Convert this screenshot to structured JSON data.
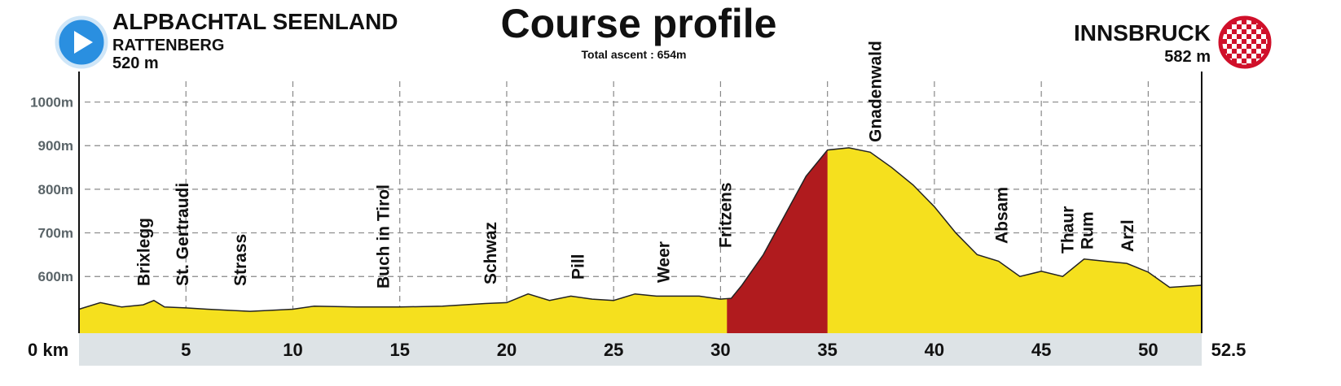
{
  "chart_data": {
    "type": "area",
    "title": "Course profile",
    "subtitle": "Total ascent : 654m",
    "start": {
      "region": "ALPBACHTAL SEENLAND",
      "town": "RATTENBERG",
      "altitude": "520 m"
    },
    "finish": {
      "town": "INNSBRUCK",
      "altitude": "582 m"
    },
    "x": [
      0,
      1,
      2,
      3,
      3.5,
      4,
      5,
      6,
      8,
      10,
      11,
      13,
      15,
      17,
      19,
      20,
      21,
      22,
      23,
      24,
      25,
      26,
      27,
      28,
      29,
      30,
      30.5,
      31,
      32,
      33,
      34,
      35,
      36,
      37,
      38,
      39,
      40,
      41,
      42,
      43,
      44,
      45,
      46,
      47,
      48,
      49,
      50,
      51,
      52.5
    ],
    "series": [
      {
        "color": "#f5e01e",
        "values": [
          525,
          540,
          530,
          535,
          545,
          530,
          528,
          525,
          520,
          525,
          532,
          530,
          530,
          532,
          538,
          540,
          560,
          545,
          555,
          548,
          545,
          560,
          555,
          555,
          555,
          548,
          550,
          580,
          650,
          740,
          830,
          890,
          895,
          885,
          850,
          810,
          760,
          700,
          650,
          635,
          600,
          612,
          600,
          640,
          635,
          630,
          610,
          575,
          580
        ]
      }
    ],
    "highlight": {
      "xrange": [
        30.3,
        35
      ],
      "color": "#b01b1e"
    },
    "places": [
      {
        "name": "Brixlegg",
        "km": 3
      },
      {
        "name": "St. Gertraudi",
        "km": 4.8
      },
      {
        "name": "Strass",
        "km": 7.5
      },
      {
        "name": "Buch in Tirol",
        "km": 14.2
      },
      {
        "name": "Schwaz",
        "km": 19.2
      },
      {
        "name": "Pill",
        "km": 23.3
      },
      {
        "name": "Weer",
        "km": 27.3
      },
      {
        "name": "Fritzens",
        "km": 30.2
      },
      {
        "name": "Gnadenwald",
        "km": 37.2
      },
      {
        "name": "Absam",
        "km": 43.1
      },
      {
        "name": "Thaur",
        "km": 46.2
      },
      {
        "name": "Rum",
        "km": 47.1
      },
      {
        "name": "Arzl",
        "km": 49
      }
    ],
    "xlim": [
      0,
      52.5
    ],
    "xticks": [
      {
        "value": 0,
        "label": "0 km"
      },
      5,
      10,
      15,
      20,
      25,
      30,
      35,
      40,
      45,
      50,
      52.5
    ],
    "ylim": [
      470,
      1070
    ],
    "yticks": [
      {
        "value": 600,
        "label": "600m"
      },
      {
        "value": 700,
        "label": "700m"
      },
      {
        "value": 800,
        "label": "800m"
      },
      {
        "value": 900,
        "label": "900m"
      },
      {
        "value": 1000,
        "label": "1000m"
      }
    ],
    "grid": true
  }
}
